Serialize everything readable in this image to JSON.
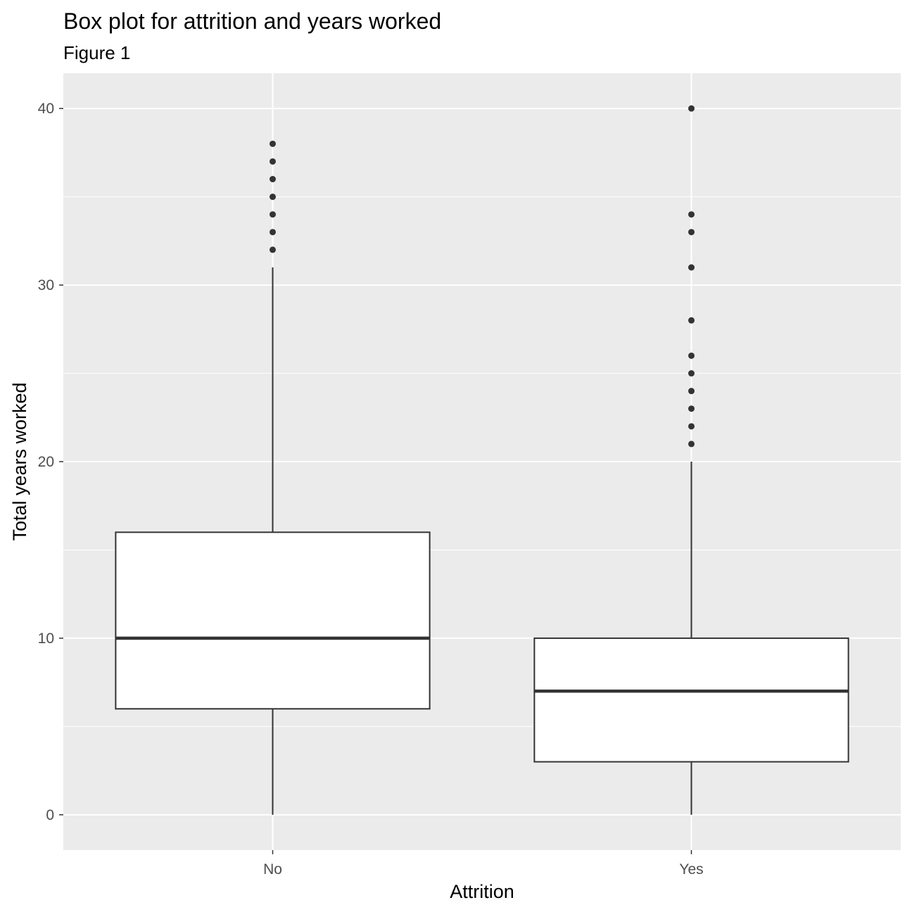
{
  "chart_data": {
    "type": "boxplot",
    "title": "Box plot for attrition and years worked",
    "subtitle": "Figure 1",
    "xlabel": "Attrition",
    "ylabel": "Total years worked",
    "categories": [
      "No",
      "Yes"
    ],
    "ylim": [
      -2,
      42
    ],
    "yticks": [
      0,
      10,
      20,
      30,
      40
    ],
    "grid": true,
    "legend": "none",
    "colors": {
      "panel": "#ebebeb",
      "grid": "#ffffff",
      "box_fill": "#ffffff",
      "box_line": "#333333",
      "tick_text": "#4d4d4d"
    },
    "boxes": [
      {
        "category": "No",
        "whisker_low": 0,
        "q1": 6,
        "median": 10,
        "q3": 16,
        "whisker_high": 31,
        "outliers": [
          32,
          33,
          34,
          35,
          36,
          37,
          38
        ]
      },
      {
        "category": "Yes",
        "whisker_low": 0,
        "q1": 3,
        "median": 7,
        "q3": 10,
        "whisker_high": 20,
        "outliers": [
          21,
          22,
          23,
          24,
          25,
          26,
          28,
          31,
          33,
          34,
          40
        ]
      }
    ]
  }
}
